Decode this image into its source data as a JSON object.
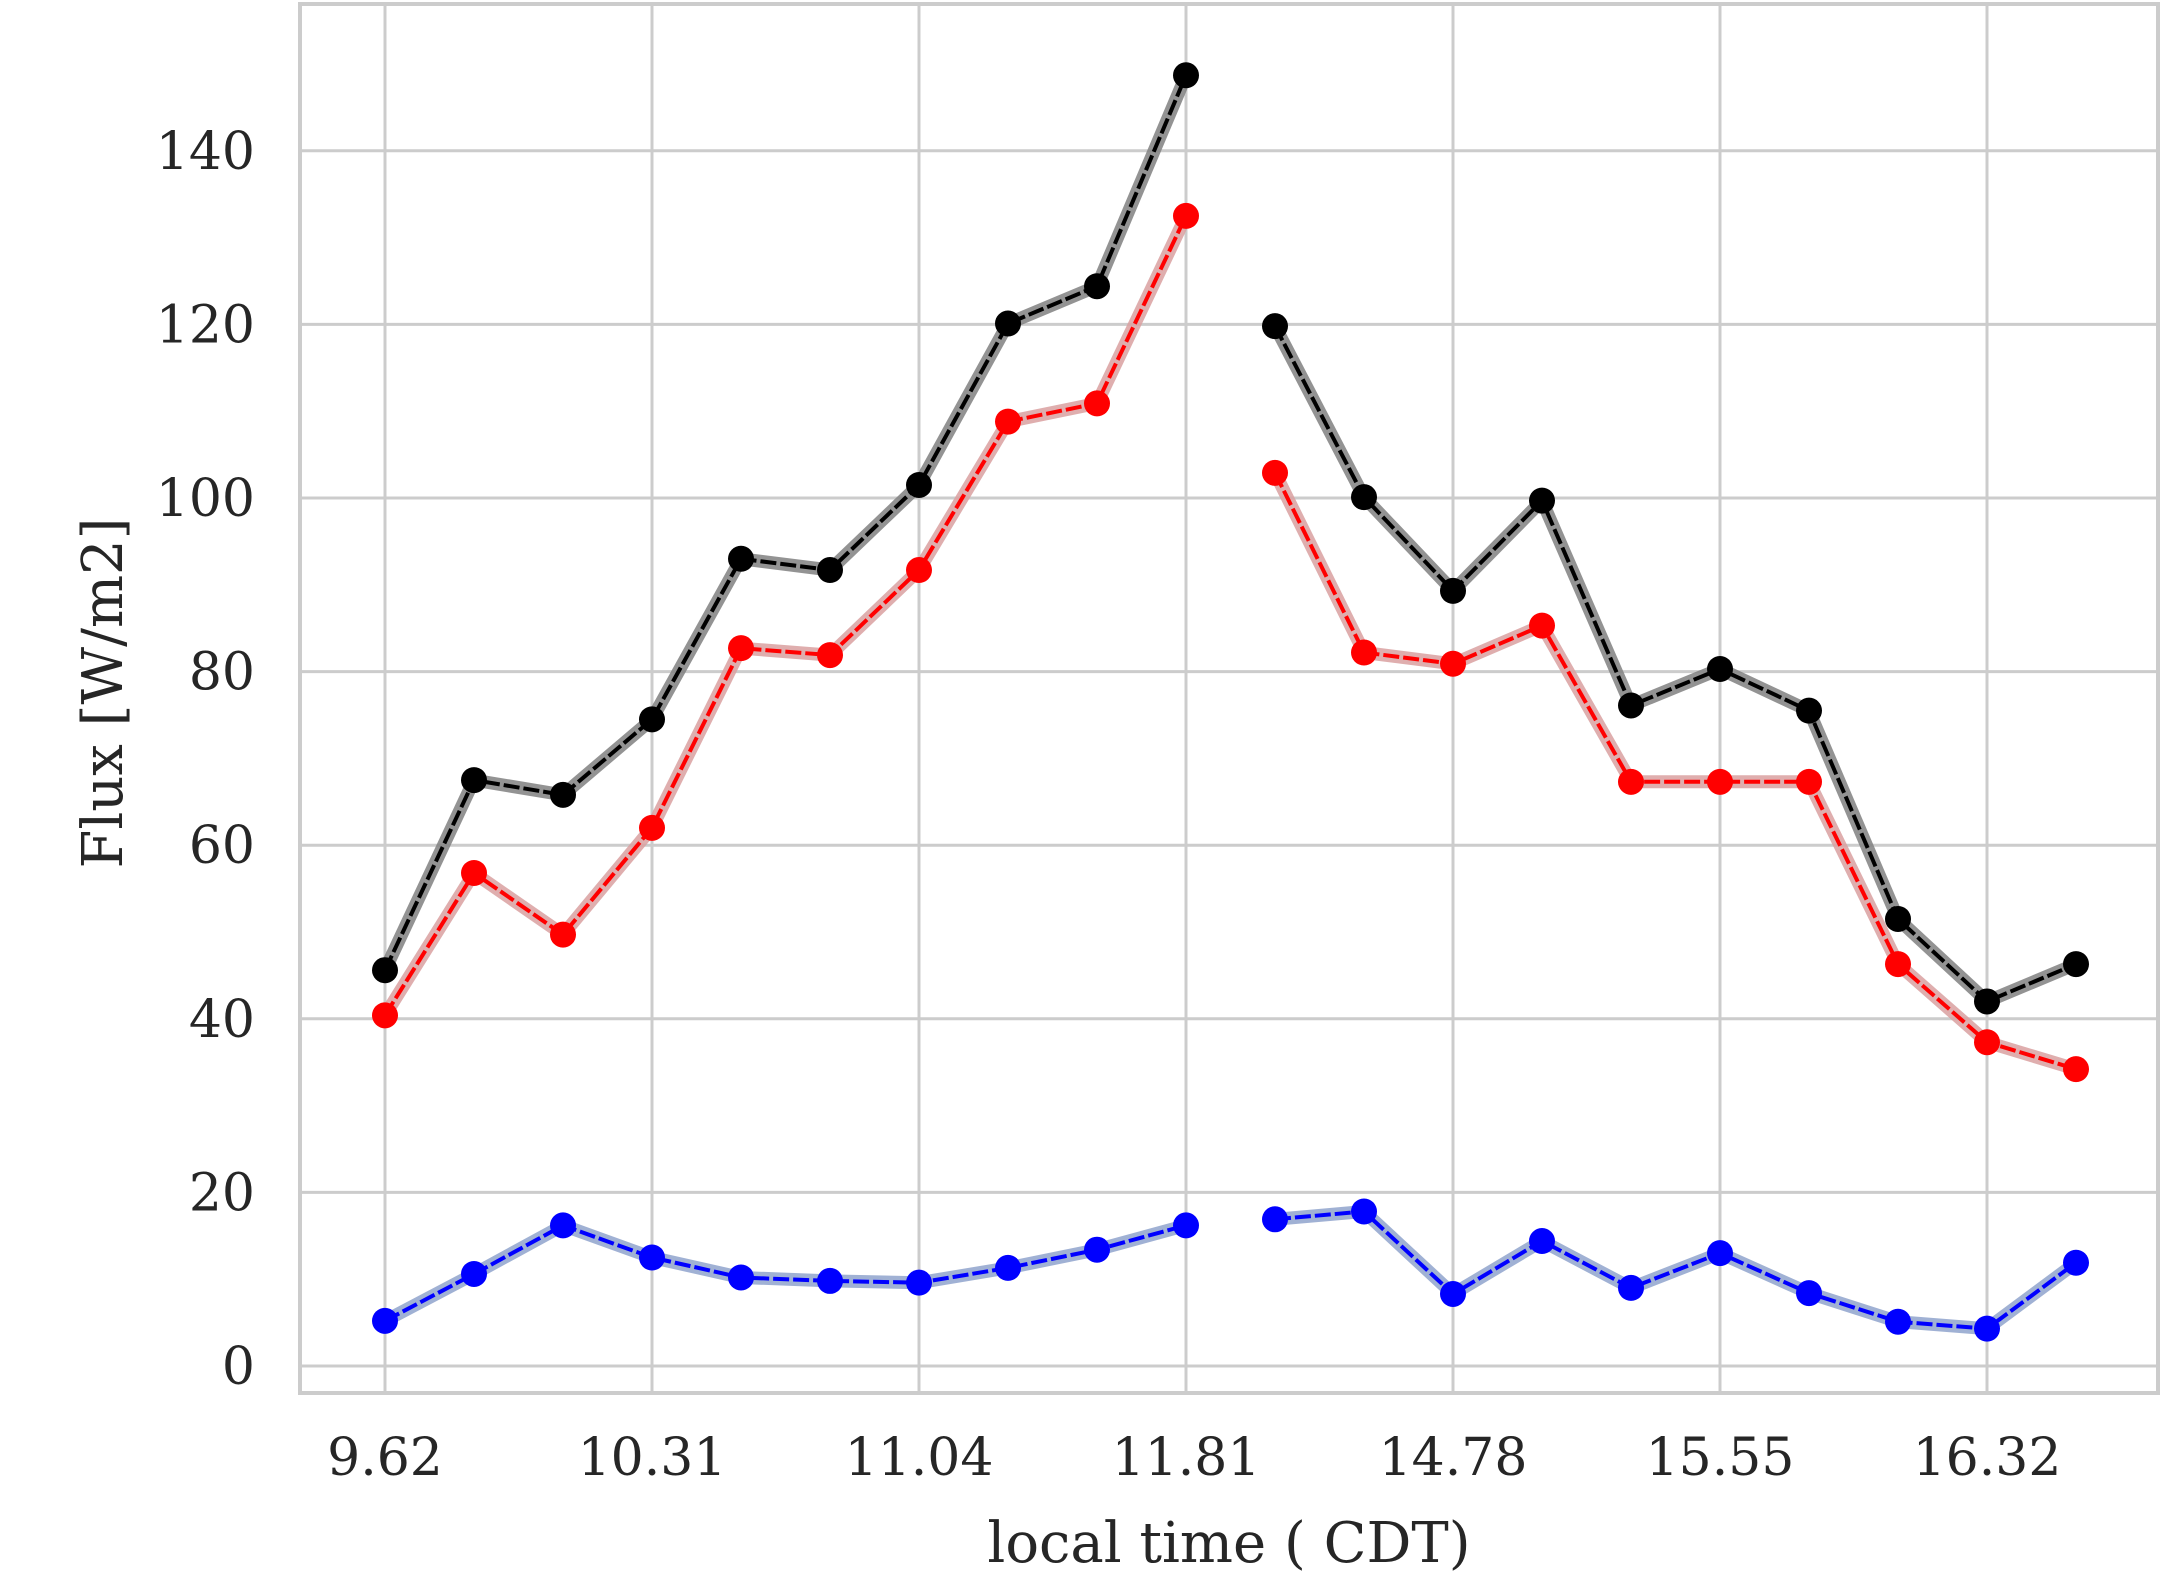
{
  "chart_data": {
    "type": "line",
    "xlabel": "local time ( CDT)",
    "ylabel": "Flux [W/m2]",
    "ylim": [
      -3,
      156
    ],
    "yticks": [
      0,
      20,
      40,
      60,
      80,
      100,
      120,
      140
    ],
    "xticks": [
      {
        "index": 0,
        "label": "9.62"
      },
      {
        "index": 3,
        "label": "10.31"
      },
      {
        "index": 6,
        "label": "11.04"
      },
      {
        "index": 9,
        "label": "11.81"
      },
      {
        "index": 12,
        "label": "14.78"
      },
      {
        "index": 15,
        "label": "15.55"
      },
      {
        "index": 18,
        "label": "16.32"
      }
    ],
    "grid": true,
    "segments": [
      [
        0,
        9
      ],
      [
        10,
        19
      ]
    ],
    "series": [
      {
        "color": "#000000",
        "band_color": "#808080",
        "values": [
          45.6,
          67.5,
          65.8,
          74.5,
          93.0,
          91.7,
          101.5,
          120.1,
          124.4,
          148.7,
          119.8,
          100.1,
          89.3,
          99.7,
          76.1,
          80.3,
          75.5,
          51.5,
          42.0,
          46.3
        ]
      },
      {
        "color": "#ff0000",
        "band_color": "#d9a0a0",
        "values": [
          40.4,
          56.8,
          49.7,
          62.0,
          82.7,
          81.9,
          91.7,
          108.8,
          110.9,
          132.5,
          102.9,
          82.2,
          80.9,
          85.3,
          67.3,
          67.3,
          67.3,
          46.3,
          37.3,
          34.2
        ]
      },
      {
        "color": "#0000ff",
        "band_color": "#8fa3cc",
        "values": [
          5.2,
          10.6,
          16.2,
          12.5,
          10.2,
          9.8,
          9.6,
          11.3,
          13.4,
          16.2,
          16.9,
          17.8,
          8.3,
          14.4,
          9.0,
          13.0,
          8.4,
          5.1,
          4.3,
          11.9
        ]
      }
    ]
  }
}
